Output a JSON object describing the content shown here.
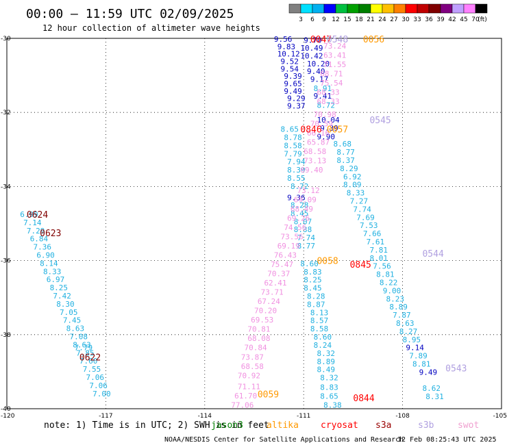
{
  "header": {
    "title": "00:00 — 11:59 UTC 02/09/2025",
    "subtitle": "12 hour collection of altimeter wave heights"
  },
  "colorbar": {
    "labels": [
      "3",
      "6",
      "9",
      "12",
      "15",
      "18",
      "21",
      "24",
      "27",
      "30",
      "33",
      "36",
      "39",
      "42",
      "45",
      "70"
    ],
    "unit": "(ft)",
    "colors": [
      "#808080",
      "#00e0ff",
      "#00b0f0",
      "#0000ff",
      "#00c040",
      "#00a000",
      "#008000",
      "#ffff00",
      "#ffc000",
      "#ff8000",
      "#ff0000",
      "#c00000",
      "#800000",
      "#800080",
      "#c0a0ff",
      "#ff80ff",
      "#000000"
    ]
  },
  "footer": {
    "note_prefix": "note: 1) Time is in UTC; 2) SWH is in feet",
    "satellites": [
      {
        "name": "jason3",
        "color": "#008000"
      },
      {
        "name": "altika",
        "color": "#ff9900"
      },
      {
        "name": "cryosat",
        "color": "#ff0000"
      },
      {
        "name": "s3a",
        "color": "#990000"
      },
      {
        "name": "s3b",
        "color": "#b0a0e0"
      },
      {
        "name": "swot",
        "color": "#f0a0d0"
      }
    ],
    "credit": "NOAA/NESDIS Center for Satellite Applications and Research",
    "timestamp": "12 Feb 08:25:43 UTC 2025"
  },
  "chart_data": {
    "type": "scatter",
    "xlim": [
      -120,
      -105
    ],
    "ylim": [
      -40,
      -30
    ],
    "xticks": [
      "-120",
      "-117",
      "-114",
      "-111",
      "-108",
      "-105"
    ],
    "yticks": [
      "-30",
      "-32",
      "-34",
      "-36",
      "-38",
      "-40"
    ],
    "grid": true,
    "time_labels": [
      {
        "text": "0624",
        "lon": -119.4,
        "lat": -34.75,
        "color": "#800000"
      },
      {
        "text": "0623",
        "lon": -119.0,
        "lat": -35.25,
        "color": "#800000"
      },
      {
        "text": "0622",
        "lon": -117.8,
        "lat": -38.6,
        "color": "#800000"
      },
      {
        "text": "0047",
        "lon": -110.8,
        "lat": -30.02,
        "color": "#ff0000"
      },
      {
        "text": "0548",
        "lon": -110.3,
        "lat": -30.02,
        "color": "#b0a0e0"
      },
      {
        "text": "0056",
        "lon": -109.2,
        "lat": -30.02,
        "color": "#ff9900"
      },
      {
        "text": "0545",
        "lon": -109.0,
        "lat": -32.2,
        "color": "#b0a0e0"
      },
      {
        "text": "0846",
        "lon": -111.1,
        "lat": -32.45,
        "color": "#ff0000"
      },
      {
        "text": "0057",
        "lon": -110.3,
        "lat": -32.45,
        "color": "#ff9900"
      },
      {
        "text": "0544",
        "lon": -107.4,
        "lat": -35.8,
        "color": "#b0a0e0"
      },
      {
        "text": "0058",
        "lon": -110.6,
        "lat": -36.0,
        "color": "#ff9900"
      },
      {
        "text": "0845",
        "lon": -109.6,
        "lat": -36.1,
        "color": "#ff0000"
      },
      {
        "text": "0543",
        "lon": -106.7,
        "lat": -38.9,
        "color": "#b0a0e0"
      },
      {
        "text": "0059",
        "lon": -112.4,
        "lat": -39.6,
        "color": "#ff9900"
      },
      {
        "text": "0844",
        "lon": -109.5,
        "lat": -39.7,
        "color": "#ff0000"
      }
    ],
    "series": [
      {
        "color": "#0000c0",
        "points": [
          {
            "lon": -111.9,
            "lat": -30.02,
            "v": "9.56"
          },
          {
            "lon": -111.8,
            "lat": -30.22,
            "v": "9.83"
          },
          {
            "lon": -111.8,
            "lat": -30.42,
            "v": "10.12"
          },
          {
            "lon": -111.7,
            "lat": -30.62,
            "v": "9.52"
          },
          {
            "lon": -111.7,
            "lat": -30.82,
            "v": "9.54"
          },
          {
            "lon": -111.6,
            "lat": -31.02,
            "v": "9.39"
          },
          {
            "lon": -111.6,
            "lat": -31.22,
            "v": "9.65"
          },
          {
            "lon": -111.6,
            "lat": -31.42,
            "v": "9.49"
          },
          {
            "lon": -111.5,
            "lat": -31.62,
            "v": "9.29"
          },
          {
            "lon": -111.5,
            "lat": -31.82,
            "v": "9.37"
          },
          {
            "lon": -111.0,
            "lat": -30.05,
            "v": "9.70"
          },
          {
            "lon": -111.1,
            "lat": -30.26,
            "v": "10.49"
          },
          {
            "lon": -111.1,
            "lat": -30.47,
            "v": "10.42"
          },
          {
            "lon": -110.9,
            "lat": -30.68,
            "v": "10.20"
          },
          {
            "lon": -110.9,
            "lat": -30.89,
            "v": "9.40"
          },
          {
            "lon": -110.8,
            "lat": -31.1,
            "v": "9.17"
          },
          {
            "lon": -110.7,
            "lat": -31.55,
            "v": "9.41"
          },
          {
            "lon": -110.6,
            "lat": -32.2,
            "v": "10.04"
          },
          {
            "lon": -110.5,
            "lat": -32.42,
            "v": "9.39"
          },
          {
            "lon": -110.6,
            "lat": -32.65,
            "v": "9.90"
          }
        ]
      },
      {
        "color": "#20b0e0",
        "points": [
          {
            "lon": -119.6,
            "lat": -34.75,
            "v": "6.99"
          },
          {
            "lon": -119.5,
            "lat": -34.97,
            "v": "7.14"
          },
          {
            "lon": -119.4,
            "lat": -35.19,
            "v": "7.29"
          },
          {
            "lon": -119.3,
            "lat": -35.41,
            "v": "6.84"
          },
          {
            "lon": -119.2,
            "lat": -35.63,
            "v": "7.36"
          },
          {
            "lon": -119.1,
            "lat": -35.85,
            "v": "6.90"
          },
          {
            "lon": -119.0,
            "lat": -36.07,
            "v": "8.14"
          },
          {
            "lon": -118.9,
            "lat": -36.29,
            "v": "8.33"
          },
          {
            "lon": -118.8,
            "lat": -36.51,
            "v": "6.97"
          },
          {
            "lon": -118.7,
            "lat": -36.73,
            "v": "8.25"
          },
          {
            "lon": -118.6,
            "lat": -36.95,
            "v": "7.42"
          },
          {
            "lon": -118.5,
            "lat": -37.17,
            "v": "8.30"
          },
          {
            "lon": -118.4,
            "lat": -37.39,
            "v": "7.05"
          },
          {
            "lon": -118.3,
            "lat": -37.61,
            "v": "7.45"
          },
          {
            "lon": -118.2,
            "lat": -37.83,
            "v": "8.63"
          },
          {
            "lon": -118.1,
            "lat": -38.05,
            "v": "7.08"
          },
          {
            "lon": -118.0,
            "lat": -38.27,
            "v": "8.63"
          },
          {
            "lon": -117.95,
            "lat": -38.35,
            "v": "7.79"
          },
          {
            "lon": -117.9,
            "lat": -38.49,
            "v": "7.85"
          },
          {
            "lon": -117.8,
            "lat": -38.71,
            "v": "7.60"
          },
          {
            "lon": -117.7,
            "lat": -38.93,
            "v": "7.55"
          },
          {
            "lon": -117.6,
            "lat": -39.15,
            "v": "7.06"
          },
          {
            "lon": -117.5,
            "lat": -39.37,
            "v": "7.06"
          },
          {
            "lon": -117.4,
            "lat": -39.59,
            "v": "7.00"
          },
          {
            "lon": -111.7,
            "lat": -32.45,
            "v": "8.65"
          },
          {
            "lon": -111.6,
            "lat": -32.67,
            "v": "8.78"
          },
          {
            "lon": -111.6,
            "lat": -32.89,
            "v": "8.58"
          },
          {
            "lon": -111.6,
            "lat": -33.11,
            "v": "7.79"
          },
          {
            "lon": -111.5,
            "lat": -33.33,
            "v": "7.94"
          },
          {
            "lon": -111.5,
            "lat": -33.55,
            "v": "8.39"
          },
          {
            "lon": -111.5,
            "lat": -33.77,
            "v": "8.55"
          },
          {
            "lon": -111.4,
            "lat": -33.99,
            "v": "8.72"
          },
          {
            "lon": -111.4,
            "lat": -34.5,
            "v": "8.28"
          },
          {
            "lon": -111.4,
            "lat": -34.72,
            "v": "8.45"
          },
          {
            "lon": -111.3,
            "lat": -34.94,
            "v": "8.07"
          },
          {
            "lon": -111.3,
            "lat": -35.16,
            "v": "8.38"
          },
          {
            "lon": -111.2,
            "lat": -35.38,
            "v": "7.74"
          },
          {
            "lon": -111.2,
            "lat": -35.6,
            "v": "8.77"
          },
          {
            "lon": -111.1,
            "lat": -36.08,
            "v": "8.60"
          },
          {
            "lon": -111.0,
            "lat": -36.3,
            "v": "8.83"
          },
          {
            "lon": -111.0,
            "lat": -36.52,
            "v": "8.25"
          },
          {
            "lon": -111.0,
            "lat": -36.74,
            "v": "8.45"
          },
          {
            "lon": -110.9,
            "lat": -36.96,
            "v": "8.28"
          },
          {
            "lon": -110.9,
            "lat": -37.18,
            "v": "8.87"
          },
          {
            "lon": -110.8,
            "lat": -37.4,
            "v": "8.13"
          },
          {
            "lon": -110.8,
            "lat": -37.62,
            "v": "8.57"
          },
          {
            "lon": -110.8,
            "lat": -37.84,
            "v": "8.58"
          },
          {
            "lon": -110.7,
            "lat": -38.06,
            "v": "8.60"
          },
          {
            "lon": -110.7,
            "lat": -38.28,
            "v": "8.24"
          },
          {
            "lon": -110.6,
            "lat": -38.5,
            "v": "8.32"
          },
          {
            "lon": -110.6,
            "lat": -38.72,
            "v": "8.89"
          },
          {
            "lon": -110.6,
            "lat": -38.94,
            "v": "8.49"
          },
          {
            "lon": -110.5,
            "lat": -39.16,
            "v": "8.32"
          },
          {
            "lon": -110.5,
            "lat": -39.42,
            "v": "8.83"
          },
          {
            "lon": -110.5,
            "lat": -39.66,
            "v": "8.65"
          },
          {
            "lon": -110.4,
            "lat": -39.9,
            "v": "8.38"
          },
          {
            "lon": -110.7,
            "lat": -31.35,
            "v": "8.91"
          },
          {
            "lon": -110.6,
            "lat": -31.8,
            "v": "8.72"
          },
          {
            "lon": -110.1,
            "lat": -32.85,
            "v": "8.68"
          },
          {
            "lon": -110.0,
            "lat": -33.07,
            "v": "8.77"
          },
          {
            "lon": -110.0,
            "lat": -33.29,
            "v": "8.37"
          },
          {
            "lon": -109.9,
            "lat": -33.51,
            "v": "8.29"
          },
          {
            "lon": -109.8,
            "lat": -33.73,
            "v": "6.92"
          },
          {
            "lon": -109.8,
            "lat": -33.95,
            "v": "8.09"
          },
          {
            "lon": -109.7,
            "lat": -34.17,
            "v": "8.33"
          },
          {
            "lon": -109.6,
            "lat": -34.39,
            "v": "7.27"
          },
          {
            "lon": -109.5,
            "lat": -34.61,
            "v": "7.74"
          },
          {
            "lon": -109.4,
            "lat": -34.83,
            "v": "7.69"
          },
          {
            "lon": -109.3,
            "lat": -35.05,
            "v": "7.53"
          },
          {
            "lon": -109.2,
            "lat": -35.27,
            "v": "7.66"
          },
          {
            "lon": -109.1,
            "lat": -35.49,
            "v": "7.61"
          },
          {
            "lon": -109.0,
            "lat": -35.71,
            "v": "7.81"
          },
          {
            "lon": -109.0,
            "lat": -35.93,
            "v": "8.01"
          },
          {
            "lon": -108.9,
            "lat": -36.15,
            "v": "7.56"
          },
          {
            "lon": -108.8,
            "lat": -36.37,
            "v": "8.81"
          },
          {
            "lon": -108.7,
            "lat": -36.59,
            "v": "8.22"
          },
          {
            "lon": -108.6,
            "lat": -36.81,
            "v": "9.00"
          },
          {
            "lon": -108.5,
            "lat": -37.03,
            "v": "8.23"
          },
          {
            "lon": -108.4,
            "lat": -37.25,
            "v": "8.89"
          },
          {
            "lon": -108.3,
            "lat": -37.47,
            "v": "7.87"
          },
          {
            "lon": -108.2,
            "lat": -37.69,
            "v": "8.63"
          },
          {
            "lon": -108.1,
            "lat": -37.91,
            "v": "8.27"
          },
          {
            "lon": -108.0,
            "lat": -38.13,
            "v": "8.95"
          },
          {
            "lon": -107.8,
            "lat": -38.57,
            "v": "7.89"
          },
          {
            "lon": -107.7,
            "lat": -38.79,
            "v": "8.81"
          },
          {
            "lon": -107.4,
            "lat": -39.45,
            "v": "8.62"
          },
          {
            "lon": -107.3,
            "lat": -39.67,
            "v": "8.31"
          }
        ]
      },
      {
        "color": "#0000c0",
        "points": [
          {
            "lon": -111.5,
            "lat": -34.3,
            "v": "9.36"
          },
          {
            "lon": -107.9,
            "lat": -38.35,
            "v": "9.14"
          },
          {
            "lon": -107.5,
            "lat": -39.01,
            "v": "9.49"
          }
        ]
      },
      {
        "color": "#f090e0",
        "points": [
          {
            "lon": -110.4,
            "lat": -30.2,
            "v": "73.24"
          },
          {
            "lon": -110.4,
            "lat": -30.45,
            "v": "63.41"
          },
          {
            "lon": -110.4,
            "lat": -30.7,
            "v": "71.55"
          },
          {
            "lon": -110.5,
            "lat": -30.95,
            "v": "68.71"
          },
          {
            "lon": -110.5,
            "lat": -31.2,
            "v": "75.54"
          },
          {
            "lon": -110.6,
            "lat": -31.45,
            "v": "68.33"
          },
          {
            "lon": -110.6,
            "lat": -31.7,
            "v": "68.33"
          },
          {
            "lon": -110.7,
            "lat": -32.05,
            "v": "70.98"
          },
          {
            "lon": -110.8,
            "lat": -32.3,
            "v": "70.59"
          },
          {
            "lon": -110.9,
            "lat": -32.55,
            "v": "66.16"
          },
          {
            "lon": -110.9,
            "lat": -32.8,
            "v": "65.87"
          },
          {
            "lon": -111.0,
            "lat": -33.05,
            "v": "68.58"
          },
          {
            "lon": -111.0,
            "lat": -33.3,
            "v": "73.13"
          },
          {
            "lon": -111.1,
            "lat": -33.55,
            "v": "69.40"
          },
          {
            "lon": -111.2,
            "lat": -34.1,
            "v": "73.12"
          },
          {
            "lon": -111.3,
            "lat": -34.35,
            "v": "69.09"
          },
          {
            "lon": -111.4,
            "lat": -34.6,
            "v": "68.49"
          },
          {
            "lon": -111.5,
            "lat": -34.85,
            "v": "69.26"
          },
          {
            "lon": -111.6,
            "lat": -35.1,
            "v": "74.56"
          },
          {
            "lon": -111.7,
            "lat": -35.35,
            "v": "73.56"
          },
          {
            "lon": -111.8,
            "lat": -35.6,
            "v": "69.19"
          },
          {
            "lon": -111.9,
            "lat": -35.85,
            "v": "76.43"
          },
          {
            "lon": -112.0,
            "lat": -36.1,
            "v": "75.47"
          },
          {
            "lon": -112.1,
            "lat": -36.35,
            "v": "70.37"
          },
          {
            "lon": -112.2,
            "lat": -36.6,
            "v": "62.41"
          },
          {
            "lon": -112.3,
            "lat": -36.85,
            "v": "73.71"
          },
          {
            "lon": -112.4,
            "lat": -37.1,
            "v": "67.24"
          },
          {
            "lon": -112.5,
            "lat": -37.35,
            "v": "70.20"
          },
          {
            "lon": -112.6,
            "lat": -37.6,
            "v": "69.53"
          },
          {
            "lon": -112.7,
            "lat": -37.85,
            "v": "70.81"
          },
          {
            "lon": -112.7,
            "lat": -38.1,
            "v": "68.08"
          },
          {
            "lon": -112.8,
            "lat": -38.35,
            "v": "70.84"
          },
          {
            "lon": -112.9,
            "lat": -38.6,
            "v": "73.87"
          },
          {
            "lon": -112.9,
            "lat": -38.85,
            "v": "68.58"
          },
          {
            "lon": -113.0,
            "lat": -39.1,
            "v": "70.92"
          },
          {
            "lon": -113.0,
            "lat": -39.4,
            "v": "71.11"
          },
          {
            "lon": -113.1,
            "lat": -39.65,
            "v": "61.70"
          },
          {
            "lon": -113.2,
            "lat": -39.9,
            "v": "77.06"
          }
        ]
      }
    ]
  }
}
